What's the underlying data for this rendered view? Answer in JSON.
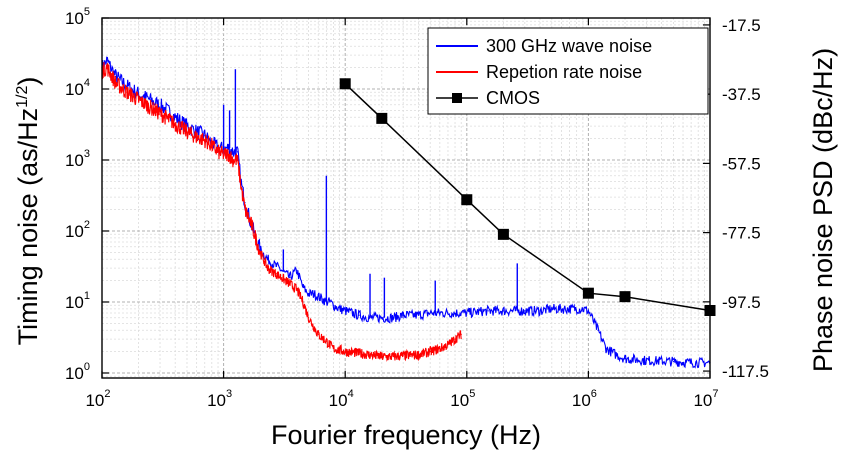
{
  "chart_data": {
    "type": "line",
    "xlabel": "Fourier frequency (Hz)",
    "ylabel": "Timing noise (as/Hz",
    "ylabel_sup": "1/2",
    "ylabel_suffix": ")",
    "y2label": "Phase noise PSD (dBc/Hz)",
    "x_scale": "log",
    "y_scale": "log",
    "xlim": [
      100,
      10000000
    ],
    "ylim": [
      0.85,
      100000
    ],
    "y2lim": [
      -119.5,
      -15.5
    ],
    "grid": true,
    "legend_position": "top-right",
    "x_ticks": [
      {
        "base": "10",
        "exp": "2",
        "value": 100
      },
      {
        "base": "10",
        "exp": "3",
        "value": 1000
      },
      {
        "base": "10",
        "exp": "4",
        "value": 10000
      },
      {
        "base": "10",
        "exp": "5",
        "value": 100000
      },
      {
        "base": "10",
        "exp": "6",
        "value": 1000000
      },
      {
        "base": "10",
        "exp": "7",
        "value": 10000000
      }
    ],
    "y_ticks": [
      {
        "base": "10",
        "exp": "0",
        "value": 1
      },
      {
        "base": "10",
        "exp": "1",
        "value": 10
      },
      {
        "base": "10",
        "exp": "2",
        "value": 100
      },
      {
        "base": "10",
        "exp": "3",
        "value": 1000
      },
      {
        "base": "10",
        "exp": "4",
        "value": 10000
      },
      {
        "base": "10",
        "exp": "5",
        "value": 100000
      }
    ],
    "y2_ticks": [
      "-17.5",
      "-37.5",
      "-57.5",
      "-77.5",
      "-97.5",
      "-117.5"
    ],
    "series": [
      {
        "name": "300 GHz wave noise",
        "color": "#0000ff",
        "axis": "left",
        "x": [
          100,
          110,
          130,
          160,
          200,
          250,
          320,
          400,
          500,
          600,
          700,
          800,
          900,
          1000,
          1100,
          1200,
          1300,
          1400,
          1500,
          1700,
          2000,
          2300,
          2700,
          3000,
          3500,
          4000,
          4500,
          5000,
          5500,
          6000,
          6500,
          7000,
          7500,
          8000,
          9000,
          10000,
          13000,
          16000,
          20000,
          25000,
          30000,
          40000,
          50000,
          70000,
          100000,
          150000,
          200000,
          300000,
          400000,
          500000,
          700000,
          900000,
          1000000,
          1200000,
          1400000,
          1700000,
          2000000,
          3000000,
          5000000,
          7000000,
          10000000
        ],
        "y": [
          20000,
          25000,
          15000,
          11000,
          8500,
          7000,
          5500,
          4000,
          3000,
          2500,
          2200,
          1700,
          1500,
          1400,
          1500,
          1300,
          1300,
          450,
          250,
          120,
          55,
          40,
          32,
          28,
          22,
          28,
          16,
          13,
          13,
          12,
          11,
          10,
          10,
          9,
          8,
          7.5,
          6.5,
          6,
          6,
          6,
          6.5,
          6.5,
          7,
          7,
          7,
          7.5,
          7.5,
          7.5,
          7.5,
          8,
          8,
          8,
          7.5,
          4,
          2.2,
          1.8,
          1.6,
          1.5,
          1.45,
          1.4,
          1.4
        ]
      },
      {
        "name": "Repetion rate noise",
        "color": "#ff0000",
        "axis": "left",
        "x": [
          100,
          110,
          130,
          160,
          200,
          250,
          320,
          400,
          500,
          600,
          700,
          800,
          900,
          1000,
          1100,
          1200,
          1300,
          1400,
          1500,
          1700,
          2000,
          2300,
          2700,
          3000,
          3500,
          4000,
          4500,
          5000,
          6000,
          7000,
          8000,
          10000,
          13000,
          16000,
          20000,
          25000,
          30000,
          40000,
          50000,
          60000,
          70000,
          80000,
          90000
        ],
        "y": [
          18000,
          20000,
          12000,
          9000,
          7000,
          5500,
          4200,
          3200,
          2500,
          2100,
          1900,
          1600,
          1300,
          1200,
          1200,
          1000,
          1000,
          400,
          200,
          120,
          50,
          30,
          25,
          22,
          18,
          15,
          10,
          6,
          3.5,
          2.8,
          2.2,
          2.0,
          1.9,
          1.8,
          1.7,
          1.7,
          1.75,
          1.8,
          2.0,
          2.2,
          2.5,
          3.0,
          3.5
        ]
      },
      {
        "name": "CMOS",
        "color": "#000000",
        "axis": "right",
        "marker": "square",
        "x": [
          10000,
          20000,
          100000,
          200000,
          1000000,
          2000000,
          10000000
        ],
        "y": [
          -34.5,
          -44.5,
          -68,
          -78,
          -95,
          -96,
          -100
        ]
      }
    ],
    "spikes": [
      {
        "x": 1000,
        "y": 6000
      },
      {
        "x": 1120,
        "y": 5000
      },
      {
        "x": 1250,
        "y": 19000
      },
      {
        "x": 3100,
        "y": 55
      },
      {
        "x": 7000,
        "y": 600
      },
      {
        "x": 16000,
        "y": 25
      },
      {
        "x": 21000,
        "y": 22
      },
      {
        "x": 55000,
        "y": 20
      },
      {
        "x": 260000,
        "y": 35
      }
    ]
  }
}
